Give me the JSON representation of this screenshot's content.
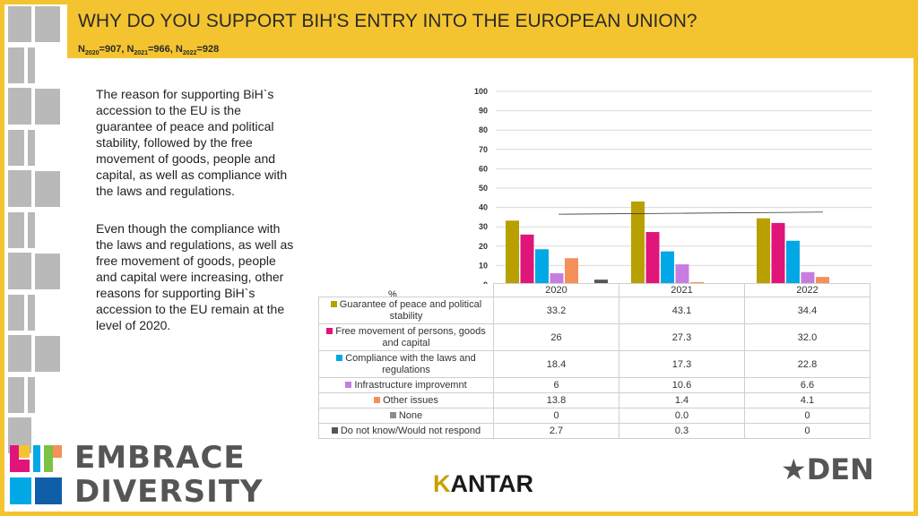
{
  "header": {
    "title": "WHY DO YOU SUPPORT BIH'S ENTRY INTO THE EUROPEAN UNION?",
    "sample": [
      {
        "label": "N",
        "year": "2020",
        "value": "=907"
      },
      {
        "label": "N",
        "year": "2021",
        "value": "=966"
      },
      {
        "label": "N",
        "year": "2022",
        "value": "=928"
      }
    ]
  },
  "text": {
    "paragraph1": "The reason for supporting BiH`s accession to the EU is the guarantee of peace and political stability, followed by the free movement of goods, people and capital, as well as compliance with the laws and regulations.",
    "paragraph2": "Even though the compliance with the laws and regulations, as well as free movement of goods, people and capital were increasing, other reasons for supporting BiH`s accession to the EU remain at the level of 2020."
  },
  "chart_data": {
    "type": "bar",
    "categories": [
      "2020",
      "2021",
      "2022"
    ],
    "unit_label": "%",
    "ylim": [
      0,
      100
    ],
    "yticks": [
      "0",
      "10",
      "20",
      "30",
      "40",
      "50",
      "60",
      "70",
      "80",
      "90",
      "100"
    ],
    "grid": true,
    "series": [
      {
        "name": "Guarantee of peace and political stability",
        "color": "#b8a000",
        "values": [
          33.2,
          43.1,
          34.4
        ],
        "labels": [
          "33.2",
          "43.1",
          "34.4"
        ]
      },
      {
        "name": "Free movement of persons, goods and capital",
        "color": "#e0157a",
        "values": [
          26,
          27.3,
          32.0
        ],
        "labels": [
          "26",
          "27.3",
          "32.0"
        ]
      },
      {
        "name": "Compliance with the laws and regulations",
        "color": "#00a8e6",
        "values": [
          18.4,
          17.3,
          22.8
        ],
        "labels": [
          "18.4",
          "17.3",
          "22.8"
        ]
      },
      {
        "name": "Infrastructure improvemnt",
        "color": "#c77de0",
        "values": [
          6,
          10.6,
          6.6
        ],
        "labels": [
          "6",
          "10.6",
          "6.6"
        ]
      },
      {
        "name": "Other issues",
        "color": "#f4905a",
        "values": [
          13.8,
          1.4,
          4.1
        ],
        "labels": [
          "13.8",
          "1.4",
          "4.1"
        ]
      },
      {
        "name": "None",
        "color": "#8c8c8c",
        "values": [
          0,
          0.0,
          0
        ],
        "labels": [
          "0",
          "0.0",
          "0"
        ]
      },
      {
        "name": "Do not know/Would not respond",
        "color": "#555555",
        "values": [
          2.7,
          0.3,
          0
        ],
        "labels": [
          "2.7",
          "0.3",
          "0"
        ]
      }
    ],
    "trendline": {
      "series": "Guarantee of peace and political stability",
      "values": [
        36.5,
        37.1,
        37.6
      ]
    }
  },
  "logos": {
    "embrace_line1": "EMBRACE",
    "embrace_line2": "DIVERSITY",
    "kantar_k": "K",
    "kantar_rest": "ANTAR",
    "den": "DEN"
  }
}
